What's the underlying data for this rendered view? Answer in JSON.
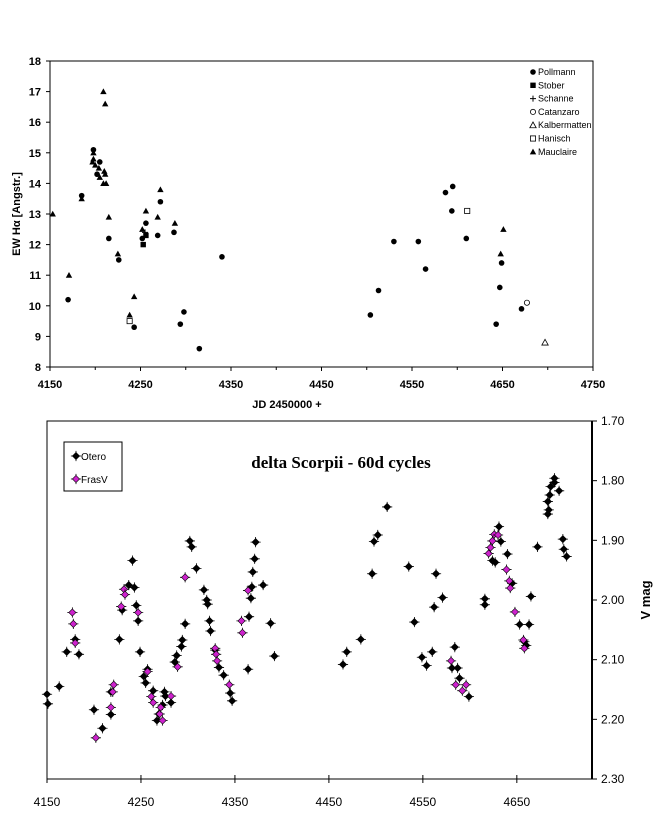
{
  "chart_data": [
    {
      "type": "scatter",
      "xlabel": "JD 2450000 +",
      "ylabel": "EW Hα [Angstr.]",
      "xlim": [
        4150,
        4750
      ],
      "ylim": [
        8,
        18
      ],
      "xticks": [
        "4150",
        "4250",
        "4350",
        "4450",
        "4550",
        "4650",
        "4750"
      ],
      "yticks": [
        "8",
        "9",
        "10",
        "11",
        "12",
        "13",
        "14",
        "15",
        "16",
        "17",
        "18"
      ],
      "grid": false,
      "legend_placement": "top-right",
      "series": [
        {
          "name": "Pollmann",
          "marker": "filled-circle",
          "points": [
            [
              4170,
              10.2
            ],
            [
              4185,
              13.6
            ],
            [
              4198,
              15.1
            ],
            [
              4202,
              14.3
            ],
            [
              4205,
              14.7
            ],
            [
              4215,
              12.2
            ],
            [
              4226,
              11.5
            ],
            [
              4243,
              9.3
            ],
            [
              4252,
              12.2
            ],
            [
              4256,
              12.7
            ],
            [
              4269,
              12.3
            ],
            [
              4272,
              13.4
            ],
            [
              4287,
              12.4
            ],
            [
              4294,
              9.4
            ],
            [
              4298,
              9.8
            ],
            [
              4315,
              8.6
            ],
            [
              4340,
              11.6
            ],
            [
              4504,
              9.7
            ],
            [
              4513,
              10.5
            ],
            [
              4530,
              12.1
            ],
            [
              4557,
              12.1
            ],
            [
              4565,
              11.2
            ],
            [
              4587,
              13.7
            ],
            [
              4595,
              13.9
            ],
            [
              4594,
              13.1
            ],
            [
              4610,
              12.2
            ],
            [
              4643,
              9.4
            ],
            [
              4647,
              10.6
            ],
            [
              4649,
              11.4
            ],
            [
              4671,
              9.9
            ]
          ]
        },
        {
          "name": "Stober",
          "marker": "filled-square",
          "points": [
            [
              4253,
              12.0
            ],
            [
              4256,
              12.3
            ]
          ]
        },
        {
          "name": "Schanne",
          "marker": "plus",
          "points": [
            [
              4255,
              12.4
            ]
          ]
        },
        {
          "name": "Catanzaro",
          "marker": "open-circle",
          "points": [
            [
              4677,
              10.1
            ]
          ]
        },
        {
          "name": "Kalbermatten",
          "marker": "open-triangle",
          "points": [
            [
              4697,
              8.8
            ]
          ]
        },
        {
          "name": "Hanisch",
          "marker": "open-square",
          "points": [
            [
              4238,
              9.5
            ],
            [
              4611,
              13.1
            ]
          ]
        },
        {
          "name": "Mauclaire",
          "marker": "filled-triangle",
          "points": [
            [
              4153,
              13.0
            ],
            [
              4171,
              11.0
            ],
            [
              4185,
              13.5
            ],
            [
              4197,
              14.7
            ],
            [
              4198,
              14.8
            ],
            [
              4198,
              15.0
            ],
            [
              4200,
              14.6
            ],
            [
              4204,
              14.5
            ],
            [
              4205,
              14.2
            ],
            [
              4209,
              17.0
            ],
            [
              4211,
              16.6
            ],
            [
              4209,
              14.0
            ],
            [
              4210,
              14.4
            ],
            [
              4211,
              14.3
            ],
            [
              4212,
              14.0
            ],
            [
              4215,
              12.9
            ],
            [
              4225,
              11.7
            ],
            [
              4238,
              9.7
            ],
            [
              4243,
              10.3
            ],
            [
              4252,
              12.5
            ],
            [
              4256,
              13.1
            ],
            [
              4269,
              12.9
            ],
            [
              4272,
              13.8
            ],
            [
              4288,
              12.7
            ],
            [
              4648,
              11.7
            ],
            [
              4651,
              12.5
            ]
          ]
        }
      ]
    },
    {
      "type": "scatter",
      "title": "delta Scorpii  - 60d cycles",
      "ylabel": "V mag",
      "xlim": [
        4150,
        4730
      ],
      "ylim": [
        2.3,
        1.7
      ],
      "y_reversed": true,
      "y_axis_side": "right",
      "xticks": [
        "4150",
        "4250",
        "4350",
        "4450",
        "4550",
        "4650"
      ],
      "yticks": [
        "1.70",
        "1.80",
        "1.90",
        "2.00",
        "2.10",
        "2.20",
        "2.30"
      ],
      "grid": false,
      "legend_placement": "top-left",
      "series": [
        {
          "name": "Otero",
          "color": "#000000",
          "marker": "diamond",
          "points": [
            [
              4150,
              2.158
            ],
            [
              4151,
              2.174
            ],
            [
              4163,
              2.145
            ],
            [
              4171,
              2.087
            ],
            [
              4180,
              2.066
            ],
            [
              4184,
              2.091
            ],
            [
              4200,
              2.184
            ],
            [
              4209,
              2.215
            ],
            [
              4218,
              2.192
            ],
            [
              4218,
              2.154
            ],
            [
              4227,
              2.066
            ],
            [
              4230,
              2.017
            ],
            [
              4237,
              1.975
            ],
            [
              4241,
              1.934
            ],
            [
              4243,
              1.979
            ],
            [
              4245,
              2.009
            ],
            [
              4247,
              2.035
            ],
            [
              4249,
              2.087
            ],
            [
              4253,
              2.128
            ],
            [
              4255,
              2.139
            ],
            [
              4257,
              2.116
            ],
            [
              4263,
              2.152
            ],
            [
              4267,
              2.202
            ],
            [
              4269,
              2.191
            ],
            [
              4273,
              2.176
            ],
            [
              4275,
              2.154
            ],
            [
              4276,
              2.161
            ],
            [
              4282,
              2.172
            ],
            [
              4286,
              2.104
            ],
            [
              4288,
              2.093
            ],
            [
              4293,
              2.078
            ],
            [
              4294,
              2.067
            ],
            [
              4297,
              2.04
            ],
            [
              4302,
              1.901
            ],
            [
              4304,
              1.911
            ],
            [
              4309,
              1.947
            ],
            [
              4317,
              1.983
            ],
            [
              4320,
              2.0
            ],
            [
              4321,
              2.007
            ],
            [
              4323,
              2.035
            ],
            [
              4324,
              2.052
            ],
            [
              4329,
              2.084
            ],
            [
              4333,
              2.113
            ],
            [
              4338,
              2.126
            ],
            [
              4345,
              2.156
            ],
            [
              4347,
              2.169
            ],
            [
              4364,
              2.116
            ],
            [
              4365,
              2.028
            ],
            [
              4367,
              1.997
            ],
            [
              4368,
              1.978
            ],
            [
              4369,
              1.953
            ],
            [
              4371,
              1.931
            ],
            [
              4372,
              1.903
            ],
            [
              4380,
              1.975
            ],
            [
              4388,
              2.039
            ],
            [
              4392,
              2.094
            ],
            [
              4465,
              2.108
            ],
            [
              4469,
              2.087
            ],
            [
              4484,
              2.066
            ],
            [
              4496,
              1.956
            ],
            [
              4498,
              1.902
            ],
            [
              4502,
              1.891
            ],
            [
              4512,
              1.844
            ],
            [
              4535,
              1.944
            ],
            [
              4541,
              2.037
            ],
            [
              4549,
              2.096
            ],
            [
              4554,
              2.11
            ],
            [
              4560,
              2.087
            ],
            [
              4562,
              2.012
            ],
            [
              4564,
              1.956
            ],
            [
              4571,
              1.996
            ],
            [
              4584,
              2.079
            ],
            [
              4581,
              2.114
            ],
            [
              4587,
              2.114
            ],
            [
              4589,
              2.131
            ],
            [
              4599,
              2.162
            ],
            [
              4616,
              1.998
            ],
            [
              4616,
              2.008
            ],
            [
              4624,
              1.934
            ],
            [
              4627,
              1.937
            ],
            [
              4631,
              1.877
            ],
            [
              4633,
              1.902
            ],
            [
              4640,
              1.923
            ],
            [
              4645,
              1.972
            ],
            [
              4653,
              2.041
            ],
            [
              4658,
              2.07
            ],
            [
              4660,
              2.076
            ],
            [
              4663,
              2.041
            ],
            [
              4665,
              1.994
            ],
            [
              4672,
              1.911
            ],
            [
              4683,
              1.856
            ],
            [
              4683,
              1.835
            ],
            [
              4684,
              1.849
            ],
            [
              4685,
              1.824
            ],
            [
              4686,
              1.81
            ],
            [
              4690,
              1.796
            ],
            [
              4690,
              1.803
            ],
            [
              4695,
              1.817
            ],
            [
              4699,
              1.898
            ],
            [
              4700,
              1.915
            ],
            [
              4703,
              1.927
            ]
          ]
        },
        {
          "name": "FrasV",
          "color": "#cc22cc",
          "marker": "diamond",
          "points": [
            [
              4177,
              2.021
            ],
            [
              4178,
              2.04
            ],
            [
              4180,
              2.072
            ],
            [
              4202,
              2.231
            ],
            [
              4218,
              2.18
            ],
            [
              4220,
              2.154
            ],
            [
              4221,
              2.142
            ],
            [
              4229,
              2.011
            ],
            [
              4232,
              1.982
            ],
            [
              4233,
              1.991
            ],
            [
              4247,
              2.021
            ],
            [
              4257,
              2.12
            ],
            [
              4261,
              2.162
            ],
            [
              4263,
              2.172
            ],
            [
              4270,
              2.191
            ],
            [
              4271,
              2.18
            ],
            [
              4273,
              2.202
            ],
            [
              4282,
              2.161
            ],
            [
              4289,
              2.112
            ],
            [
              4297,
              1.962
            ],
            [
              4329,
              2.081
            ],
            [
              4330,
              2.091
            ],
            [
              4331,
              2.102
            ],
            [
              4344,
              2.142
            ],
            [
              4357,
              2.035
            ],
            [
              4358,
              2.055
            ],
            [
              4364,
              1.984
            ],
            [
              4580,
              2.102
            ],
            [
              4585,
              2.142
            ],
            [
              4592,
              2.152
            ],
            [
              4596,
              2.142
            ],
            [
              4620,
              1.922
            ],
            [
              4622,
              1.912
            ],
            [
              4624,
              1.901
            ],
            [
              4626,
              1.89
            ],
            [
              4630,
              1.891
            ],
            [
              4639,
              1.949
            ],
            [
              4642,
              1.968
            ],
            [
              4643,
              1.98
            ],
            [
              4648,
              2.02
            ],
            [
              4657,
              2.067
            ],
            [
              4658,
              2.081
            ]
          ]
        }
      ]
    }
  ]
}
